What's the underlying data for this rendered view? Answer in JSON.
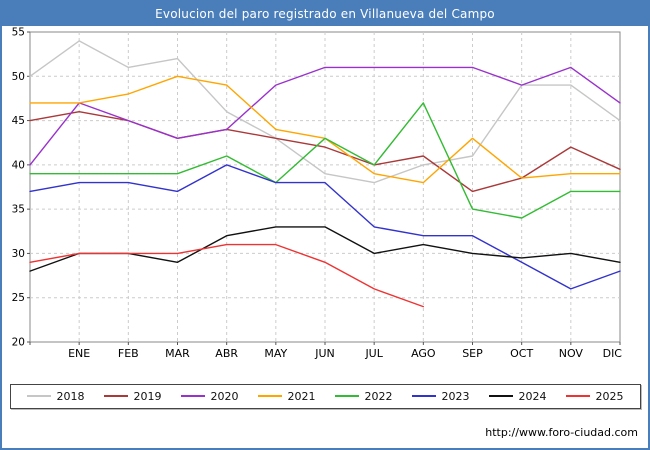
{
  "title": "Evolucion del paro registrado en Villanueva del Campo",
  "footer": {
    "url": "http://www.foro-ciudad.com"
  },
  "colors": {
    "title_bar": "#4a7ebb",
    "frame_border": "#4a7ebb",
    "grid": "#cccccc",
    "axis": "#888888",
    "tick_text": "#000000"
  },
  "chart_data": {
    "type": "line",
    "title": "Evolucion del paro registrado en Villanueva del Campo",
    "categories": [
      "",
      "ENE",
      "FEB",
      "MAR",
      "ABR",
      "MAY",
      "JUN",
      "JUL",
      "AGO",
      "SEP",
      "OCT",
      "NOV",
      "DIC"
    ],
    "note": "first data point of each year sits on the y-axis without a month label",
    "xlabel": "",
    "ylabel": "",
    "ylim": [
      20,
      55
    ],
    "ytick_step": 5,
    "grid": true,
    "legend_position": "bottom",
    "series": [
      {
        "name": "2018",
        "color": "#c6c6c6",
        "values": [
          50,
          54,
          51,
          52,
          46,
          43,
          39,
          38,
          40,
          41,
          49,
          49,
          45
        ]
      },
      {
        "name": "2019",
        "color": "#aa3939",
        "values": [
          45,
          46,
          45,
          43,
          44,
          43,
          42,
          40,
          41,
          37,
          38.5,
          42,
          39.5
        ]
      },
      {
        "name": "2020",
        "color": "#9932cc",
        "values": [
          40,
          47,
          45,
          43,
          44,
          49,
          51,
          51,
          51,
          51,
          49,
          51,
          47
        ]
      },
      {
        "name": "2021",
        "color": "#ffa500",
        "values": [
          47,
          47,
          48,
          50,
          49,
          44,
          43,
          39,
          38,
          43,
          38.5,
          39,
          39
        ]
      },
      {
        "name": "2022",
        "color": "#33bb33",
        "values": [
          39,
          39,
          39,
          39,
          41,
          38,
          43,
          40,
          47,
          35,
          34,
          37,
          37
        ]
      },
      {
        "name": "2023",
        "color": "#3232cd",
        "values": [
          37,
          38,
          38,
          37,
          40,
          38,
          38,
          33,
          32,
          32,
          29,
          26,
          28
        ]
      },
      {
        "name": "2024",
        "color": "#111111",
        "values": [
          28,
          30,
          30,
          29,
          32,
          33,
          33,
          30,
          31,
          30,
          29.5,
          30,
          29
        ]
      },
      {
        "name": "2025",
        "color": "#ee3333",
        "values": [
          29,
          30,
          30,
          30,
          31,
          31,
          29,
          26,
          24
        ]
      }
    ]
  }
}
